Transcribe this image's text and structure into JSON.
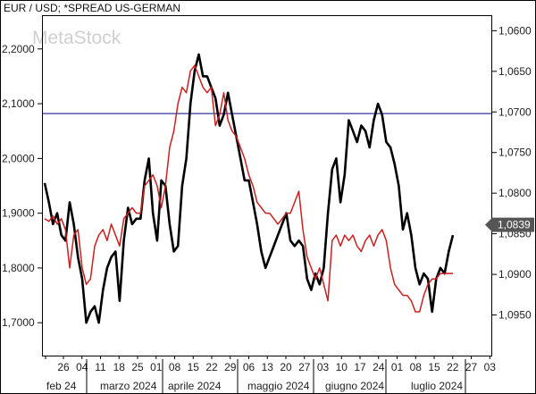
{
  "watermark_text": "MetaStock",
  "chart_data": {
    "type": "line",
    "title": "EUR / USD; *SPREAD US-GERMAN",
    "left_axis": {
      "ticks": [
        "1,7000",
        "1,8000",
        "1,9000",
        "2,0000",
        "2,1000",
        "2,2000"
      ],
      "ylim": [
        1.64,
        2.26
      ]
    },
    "right_axis": {
      "ticks": [
        "1,0600",
        "1,0650",
        "1,0700",
        "1,0750",
        "1,0800",
        "1,0850",
        "1,0900",
        "1,0950"
      ],
      "inverted": true,
      "ylim": [
        1.0582,
        1.1
      ]
    },
    "last_value_label": "1,0839",
    "reference_line": {
      "axis": "right",
      "value": 1.0702,
      "color": "#33339a"
    },
    "x_axis": {
      "tick_labels": [
        "26",
        "04",
        "11",
        "18",
        "25",
        "01",
        "08",
        "15",
        "22",
        "29",
        "06",
        "13",
        "20",
        "27",
        "03",
        "10",
        "17",
        "24",
        "01",
        "08",
        "15",
        "22",
        "27",
        "03"
      ],
      "month_labels": [
        "feb 24",
        "marzo 2024",
        "aprile 2024",
        "maggio 2024",
        "giugno 2024",
        "luglio 2024"
      ]
    },
    "series": [
      {
        "axis": "left",
        "color": "#000000",
        "values": [
          1.955,
          1.92,
          1.88,
          1.9,
          1.86,
          1.85,
          1.92,
          1.88,
          1.82,
          1.78,
          1.7,
          1.72,
          1.73,
          1.7,
          1.76,
          1.8,
          1.82,
          1.83,
          1.74,
          1.85,
          1.91,
          1.88,
          1.89,
          1.89,
          1.96,
          2.0,
          1.9,
          1.85,
          1.96,
          1.95,
          1.88,
          1.83,
          1.84,
          1.95,
          2.0,
          2.1,
          2.16,
          2.19,
          2.15,
          2.15,
          2.13,
          2.11,
          2.06,
          2.08,
          2.12,
          2.08,
          2.04,
          2.0,
          1.96,
          1.96,
          1.92,
          1.88,
          1.83,
          1.8,
          1.82,
          1.84,
          1.86,
          1.88,
          1.9,
          1.85,
          1.84,
          1.85,
          1.84,
          1.78,
          1.76,
          1.79,
          1.77,
          1.8,
          1.9,
          1.98,
          2.0,
          1.92,
          1.97,
          2.07,
          2.05,
          2.03,
          2.06,
          2.05,
          2.02,
          2.07,
          2.1,
          2.08,
          2.03,
          2.02,
          1.99,
          1.95,
          1.87,
          1.9,
          1.86,
          1.8,
          1.77,
          1.79,
          1.78,
          1.72,
          1.78,
          1.8,
          1.79,
          1.83,
          1.86
        ]
      },
      {
        "axis": "left",
        "color": "#cc1f1f",
        "values": [
          1.89,
          1.885,
          1.895,
          1.88,
          1.89,
          1.87,
          1.8,
          1.86,
          1.87,
          1.8,
          1.77,
          1.78,
          1.84,
          1.86,
          1.87,
          1.85,
          1.88,
          1.86,
          1.84,
          1.89,
          1.9,
          1.91,
          1.9,
          1.9,
          1.95,
          1.96,
          1.97,
          1.95,
          1.91,
          1.95,
          2.02,
          2.05,
          2.1,
          2.13,
          2.12,
          2.16,
          2.17,
          2.15,
          2.13,
          2.12,
          2.13,
          2.06,
          2.08,
          2.12,
          2.07,
          2.05,
          2.04,
          2.02,
          2.0,
          1.97,
          1.95,
          1.92,
          1.91,
          1.9,
          1.9,
          1.89,
          1.88,
          1.89,
          1.9,
          1.9,
          1.92,
          1.94,
          1.87,
          1.82,
          1.8,
          1.78,
          1.8,
          1.77,
          1.74,
          1.85,
          1.86,
          1.84,
          1.86,
          1.85,
          1.86,
          1.84,
          1.83,
          1.85,
          1.86,
          1.84,
          1.86,
          1.87,
          1.85,
          1.8,
          1.77,
          1.76,
          1.75,
          1.75,
          1.74,
          1.72,
          1.72,
          1.75,
          1.77,
          1.78,
          1.78,
          1.79,
          1.79,
          1.79,
          1.79
        ]
      }
    ]
  }
}
